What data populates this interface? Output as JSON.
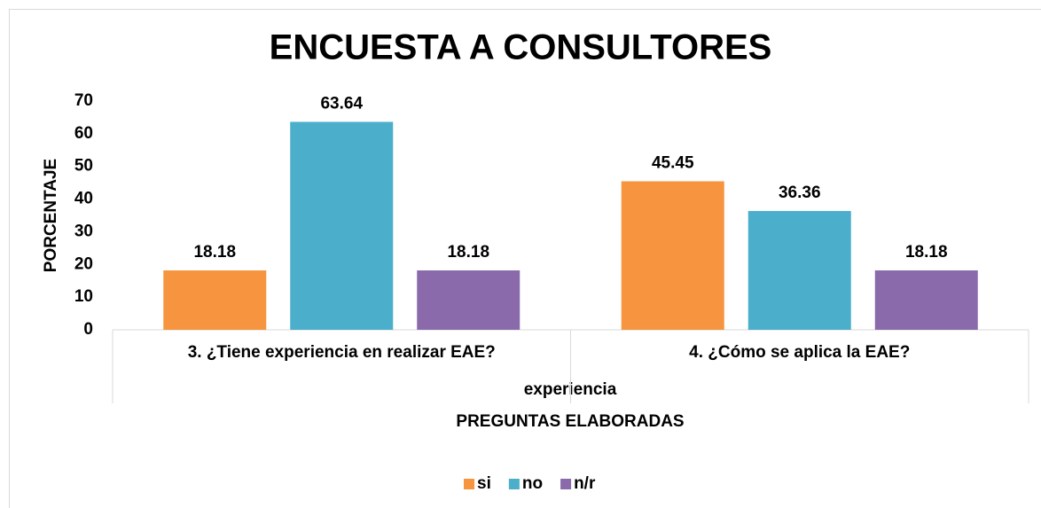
{
  "chart_data": {
    "type": "bar",
    "title": "ENCUESTA A CONSULTORES",
    "y_label": "PORCENTAJE",
    "x_group_label": "experiencia",
    "x_label": "PREGUNTAS ELABORADAS",
    "categories": [
      "3. ¿Tiene experiencia en realizar EAE?",
      "4. ¿Cómo se aplica la EAE?"
    ],
    "series": [
      {
        "name": "si",
        "color": "#f7943f",
        "values": [
          18.18,
          45.45
        ]
      },
      {
        "name": "no",
        "color": "#4bafcb",
        "values": [
          63.64,
          36.36
        ]
      },
      {
        "name": "n/r",
        "color": "#8a6aab",
        "values": [
          18.18,
          18.18
        ]
      }
    ],
    "ylim": [
      0,
      70
    ],
    "yticks": [
      0,
      10,
      20,
      30,
      40,
      50,
      60,
      70
    ],
    "legend": "bottom"
  }
}
